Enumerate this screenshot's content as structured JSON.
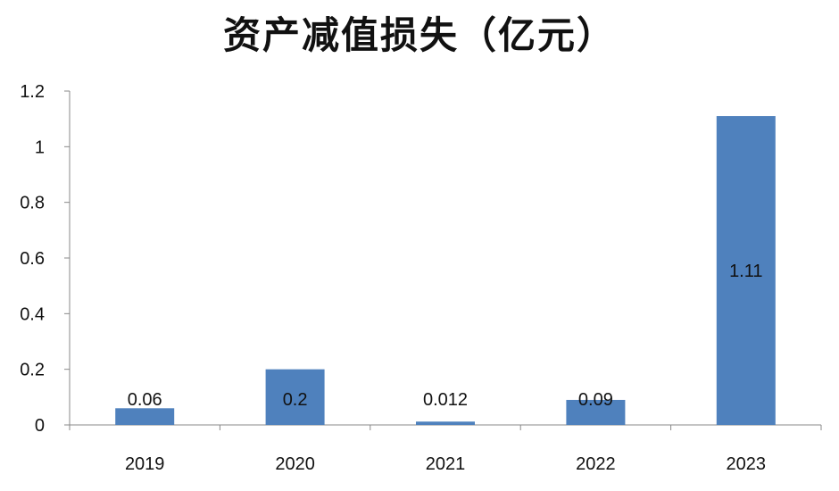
{
  "chart_data": {
    "type": "bar",
    "title": "资产减值损失（亿元）",
    "categories": [
      "2019",
      "2020",
      "2021",
      "2022",
      "2023"
    ],
    "values": [
      0.06,
      0.2,
      0.012,
      0.09,
      1.11
    ],
    "data_labels": [
      "0.06",
      "0.2",
      "0.012",
      "0.09",
      "1.11"
    ],
    "y_ticks": [
      "0",
      "0.2",
      "0.4",
      "0.6",
      "0.8",
      "1",
      "1.2"
    ],
    "ylim": [
      0,
      1.2
    ],
    "xlabel": "",
    "ylabel": "",
    "grid": false,
    "legend": false,
    "bar_color": "#4f81bd"
  }
}
